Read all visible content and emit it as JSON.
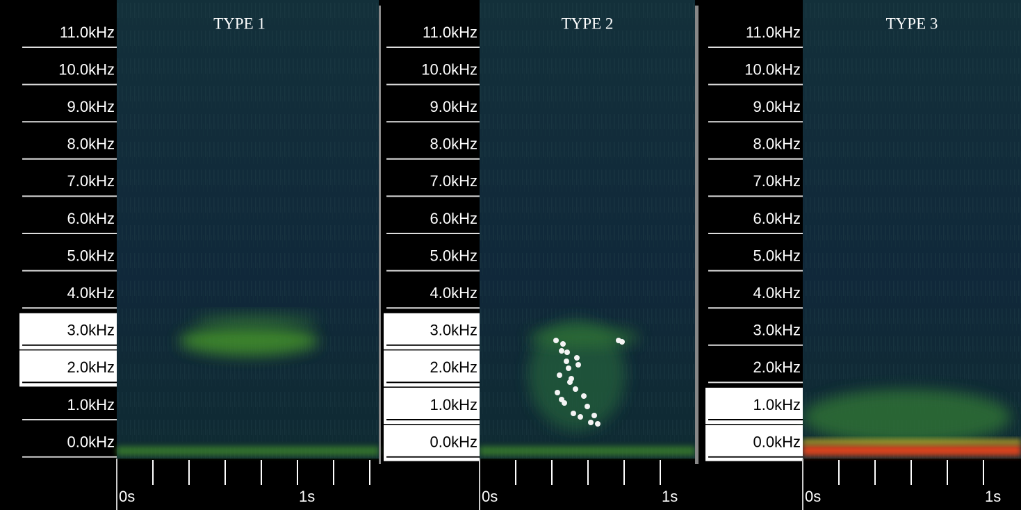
{
  "panels": [
    {
      "title": "TYPE 1",
      "frequency_labels": [
        "11.0kHz",
        "10.0kHz",
        "9.0kHz",
        "8.0kHz",
        "7.0kHz",
        "6.0kHz",
        "5.0kHz",
        "4.0kHz",
        "3.0kHz",
        "2.0kHz",
        "1.0kHz",
        "0.0kHz"
      ],
      "time_labels": [
        "0s",
        "1s"
      ]
    },
    {
      "title": "TYPE 2",
      "frequency_labels": [
        "11.0kHz",
        "10.0kHz",
        "9.0kHz",
        "8.0kHz",
        "7.0kHz",
        "6.0kHz",
        "5.0kHz",
        "4.0kHz",
        "3.0kHz",
        "2.0kHz",
        "1.0kHz",
        "0.0kHz"
      ],
      "time_labels": [
        "0s",
        "1s"
      ]
    },
    {
      "title": "TYPE 3",
      "frequency_labels": [
        "11.0kHz",
        "10.0kHz",
        "9.0kHz",
        "8.0kHz",
        "7.0kHz",
        "6.0kHz",
        "5.0kHz",
        "4.0kHz",
        "3.0kHz",
        "2.0kHz",
        "1.0kHz",
        "0.0kHz"
      ],
      "time_labels": [
        "0s",
        "1s"
      ]
    }
  ]
}
